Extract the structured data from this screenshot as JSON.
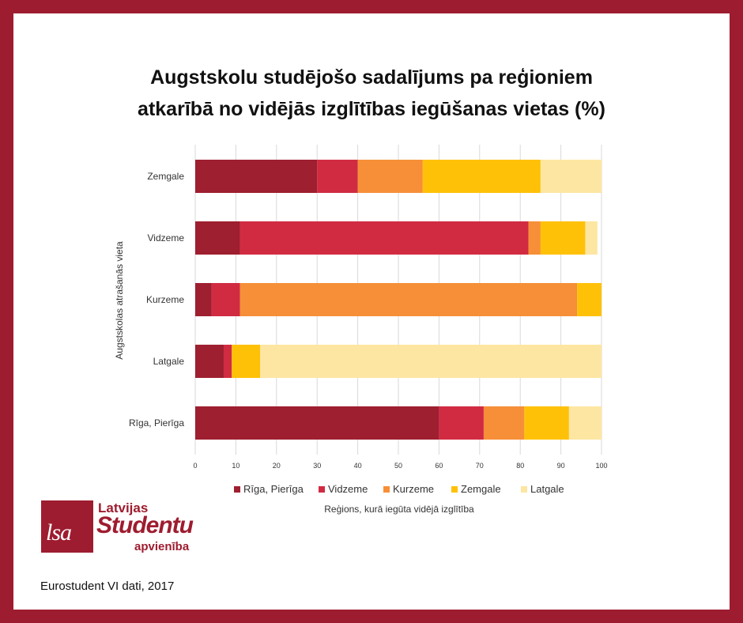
{
  "title_line1": "Augstskolu studējošo sadalījums pa reģioniem",
  "title_line2": "atkarībā no vidējās izglītības iegūšanas vietas (%)",
  "logo": {
    "line1": "Latvijas",
    "line2": "Studentu",
    "line3": "apvienība",
    "mark": "lsa"
  },
  "source": "Eurostudent VI dati, 2017",
  "colors": {
    "frame": "#9e1c2f"
  },
  "chart_data": {
    "type": "bar",
    "orientation": "horizontal",
    "stacked": true,
    "title": "Augstskolu studējošo sadalījums pa reģioniem atkarībā no vidējās izglītības iegūšanas vietas (%)",
    "xlabel": "Reģions, kurā iegūta vidējā izglītība",
    "ylabel": "Augstskolas atrašanās vieta",
    "xlim": [
      0,
      100
    ],
    "xticks": [
      0,
      10,
      20,
      30,
      40,
      50,
      60,
      70,
      80,
      90,
      100
    ],
    "grid": true,
    "legend": "bottom",
    "categories": [
      "Zemgale",
      "Vidzeme",
      "Kurzeme",
      "Latgale",
      "Rīga, Pierīga"
    ],
    "series": [
      {
        "name": "Rīga, Pierīga",
        "color": "#9e1f2f",
        "values": [
          30,
          11,
          4,
          7,
          60
        ]
      },
      {
        "name": "Vidzeme",
        "color": "#d12b42",
        "values": [
          10,
          71,
          7,
          2,
          11
        ]
      },
      {
        "name": "Kurzeme",
        "color": "#f68f38",
        "values": [
          16,
          3,
          83,
          0,
          10
        ]
      },
      {
        "name": "Zemgale",
        "color": "#ffc107",
        "values": [
          29,
          11,
          6,
          7,
          11
        ]
      },
      {
        "name": "Latgale",
        "color": "#fde6a2",
        "values": [
          15,
          3,
          0,
          84,
          8
        ]
      }
    ]
  }
}
